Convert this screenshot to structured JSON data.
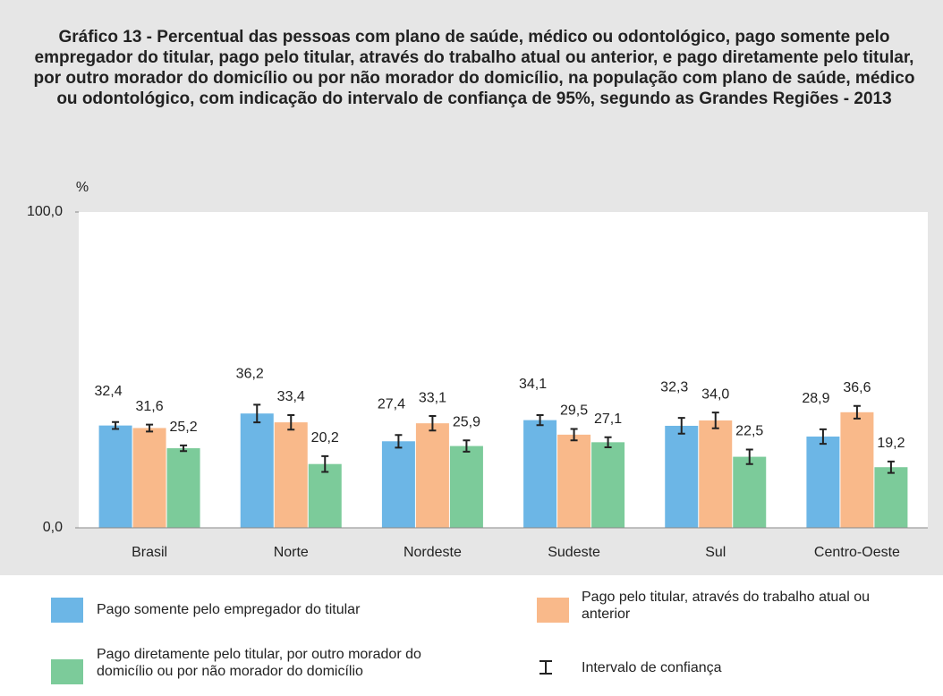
{
  "chart_data": {
    "type": "bar",
    "title": "Gráfico 13 - Percentual das pessoas com plano de saúde, médico ou odontológico, pago somente pelo empregador do titular, pago pelo titular, através do trabalho atual ou anterior, e pago diretamente pelo titular, por outro morador do domicílio ou por não morador do domicílio, na população com plano de saúde, médico ou odontológico, com indicação do intervalo de confiança de 95%, segundo as Grandes Regiões - 2013",
    "y_label": "%",
    "categories": [
      "Brasil",
      "Norte",
      "Nordeste",
      "Sudeste",
      "Sul",
      "Centro-Oeste"
    ],
    "series": [
      {
        "name": "Pago somente pelo empregador do titular",
        "color": "#6cb6e6",
        "values": [
          32.4,
          36.2,
          27.4,
          34.1,
          32.3,
          28.9
        ],
        "value_labels": [
          "32,4",
          "36,2",
          "27,4",
          "34,1",
          "32,3",
          "28,9"
        ],
        "errors": [
          1.1,
          2.8,
          2.0,
          1.6,
          2.5,
          2.3
        ]
      },
      {
        "name": "Pago pelo titular, através do trabalho atual ou anterior",
        "color": "#f9b98a",
        "values": [
          31.6,
          33.4,
          33.1,
          29.5,
          34.0,
          36.6
        ],
        "value_labels": [
          "31,6",
          "33,4",
          "33,1",
          "29,5",
          "34,0",
          "36,6"
        ],
        "errors": [
          1.1,
          2.3,
          2.3,
          1.8,
          2.5,
          2.0
        ]
      },
      {
        "name": "Pago diretamente pelo titular, por outro morador do domicílio ou por não morador do domicílio",
        "color": "#7ccb9a",
        "values": [
          25.2,
          20.2,
          25.9,
          27.1,
          22.5,
          19.2
        ],
        "value_labels": [
          "25,2",
          "20,2",
          "25,9",
          "27,1",
          "22,5",
          "19,2"
        ],
        "errors": [
          0.9,
          2.5,
          1.8,
          1.6,
          2.3,
          1.8
        ]
      }
    ],
    "error_legend": "Intervalo de confiança",
    "ylim": [
      0,
      100
    ],
    "yticks": [
      {
        "value": 0,
        "label": "0,0"
      },
      {
        "value": 100,
        "label": "100,0"
      }
    ]
  }
}
